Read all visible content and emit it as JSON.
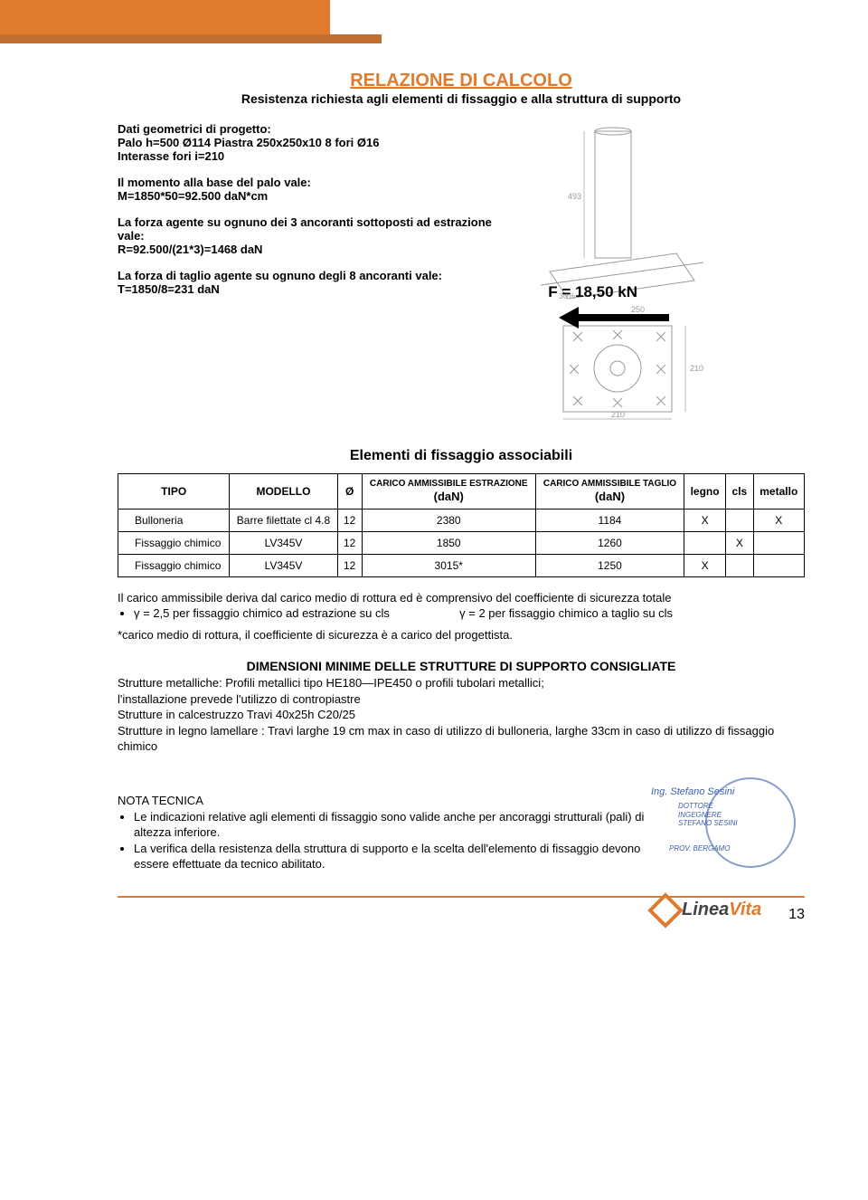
{
  "header": {
    "title": "RELAZIONE DI CALCOLO",
    "subtitle": "Resistenza richiesta agli elementi di fissaggio e alla struttura di supporto"
  },
  "geom": {
    "heading": "Dati geometrici di progetto:",
    "line1": "Palo h=500 Ø114  Piastra 250x250x10 8 fori Ø16",
    "line2": "Interasse fori i=210"
  },
  "moment": {
    "line1": "Il momento alla base del palo vale:",
    "line2": "M=1850*50=92.500 daN*cm"
  },
  "extraction": {
    "line1": "La forza agente su ognuno dei 3 ancoranti sottoposti ad estrazione vale:",
    "line2": "R=92.500/(21*3)=1468 daN"
  },
  "shear": {
    "line1": "La forza di  taglio agente su ognuno degli 8 ancoranti vale:",
    "line2": "T=1850/8=231 daN"
  },
  "force_label": "F = 18,50 kN",
  "table": {
    "section_title": "Elementi di fissaggio associabili",
    "headers": {
      "tipo": "TIPO",
      "modello": "MODELLO",
      "diam": "Ø",
      "carico_estr_top": "CARICO AMMISSIBILE ESTRAZIONE",
      "carico_estr_unit": "(daN)",
      "carico_tag_top": "CARICO AMMISSIBILE TAGLIO",
      "carico_tag_unit": "(daN)",
      "legno": "legno",
      "cls": "cls",
      "metallo": "metallo"
    },
    "rows": [
      {
        "tipo": "Bulloneria",
        "modello": "Barre filettate cl 4.8",
        "diam": "12",
        "estr": "2380",
        "tag": "1184",
        "legno": "X",
        "cls": "",
        "metallo": "X"
      },
      {
        "tipo": "Fissaggio chimico",
        "modello": "LV345V",
        "diam": "12",
        "estr": "1850",
        "tag": "1260",
        "legno": "",
        "cls": "X",
        "metallo": ""
      },
      {
        "tipo": "Fissaggio chimico",
        "modello": "LV345V",
        "diam": "12",
        "estr": "3015*",
        "tag": "1250",
        "legno": "X",
        "cls": "",
        "metallo": ""
      }
    ]
  },
  "notes": {
    "line1": "Il carico ammissibile deriva dal carico medio di rottura ed è comprensivo del coefficiente di sicurezza  totale",
    "bullet1a": "γ = 2,5 per fissaggio chimico ad estrazione su cls",
    "bullet1b": "γ = 2 per fissaggio chimico a taglio su cls",
    "line2": "*carico medio di rottura, il coefficiente di sicurezza è a carico del progettista."
  },
  "dimensions": {
    "heading": "DIMENSIONI MINIME DELLE STRUTTURE DI SUPPORTO CONSIGLIATE",
    "l1": "Strutture metalliche: Profili metallici tipo HE180—IPE450 o profili  tubolari  metallici;",
    "l2": "l'installazione prevede l'utilizzo di contropiastre",
    "l3": "Strutture in  calcestruzzo Travi 40x25h C20/25",
    "l4": "Strutture in legno lamellare : Travi larghe 19 cm max in caso di utilizzo di bulloneria, larghe 33cm in caso di utilizzo di fissaggio chimico"
  },
  "nota_tecnica": {
    "heading": "NOTA TECNICA",
    "b1": "Le indicazioni  relative agli elementi di fissaggio  sono valide anche per ancoraggi strutturali  (pali) di altezza inferiore.",
    "b2": "La verifica della resistenza della struttura di supporto e la scelta dell'elemento di fissaggio devono essere effettuate da tecnico abilitato."
  },
  "stamp": {
    "name": "Ing. Stefano Sesini",
    "sub1": "DOTTORE",
    "sub2": "INGEGNERE",
    "sub3": "STEFANO SESINI",
    "sub4": "PROV. BERGAMO"
  },
  "footer": {
    "logo_text_1": "Linea",
    "logo_text_2": "Vita",
    "page_num": "13"
  },
  "colors": {
    "accent": "#e07b2e",
    "stamp": "#3a5ea8"
  }
}
